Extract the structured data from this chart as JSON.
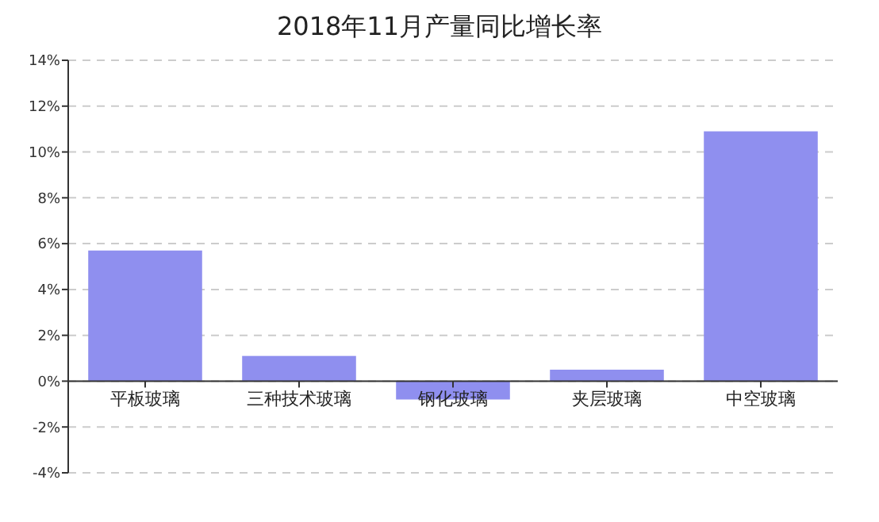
{
  "chart_data": {
    "type": "bar",
    "title": "2018年11月产量同比增长率",
    "categories": [
      "平板玻璃",
      "三种技术玻璃",
      "钢化玻璃",
      "夹层玻璃",
      "中空玻璃"
    ],
    "values": [
      5.7,
      1.1,
      -0.8,
      0.5,
      10.9
    ],
    "color": "#8f8fef",
    "ylim": [
      -4,
      14
    ],
    "yticks": [
      {
        "value": -4,
        "label": "-4%"
      },
      {
        "value": -2,
        "label": "-2%"
      },
      {
        "value": 0,
        "label": "0%"
      },
      {
        "value": 2,
        "label": "2%"
      },
      {
        "value": 4,
        "label": "4%"
      },
      {
        "value": 6,
        "label": "6%"
      },
      {
        "value": 8,
        "label": "8%"
      },
      {
        "value": 10,
        "label": "10%"
      },
      {
        "value": 12,
        "label": "12%"
      },
      {
        "value": 14,
        "label": "14%"
      }
    ],
    "grid": "y"
  }
}
